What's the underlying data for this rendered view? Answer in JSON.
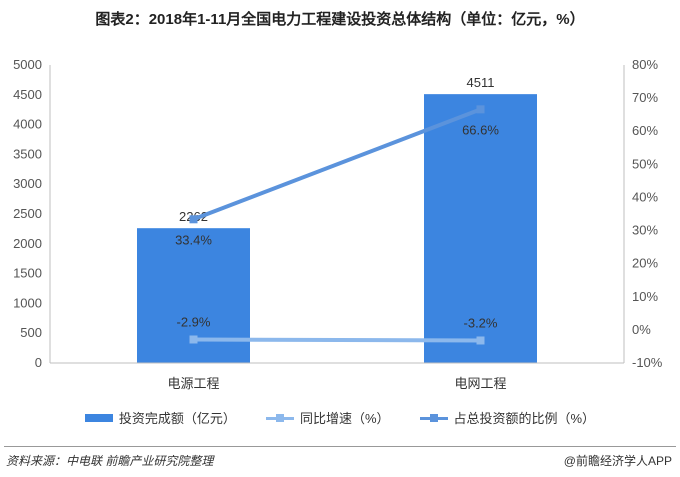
{
  "chart_data": {
    "type": "bar",
    "title": "图表2：2018年1-11月全国电力工程建设投资总体结构（单位：亿元，%）",
    "categories": [
      "电源工程",
      "电网工程"
    ],
    "series": [
      {
        "name": "投资完成额（亿元）",
        "kind": "bar",
        "axis": "left",
        "values": [
          2262,
          4511
        ],
        "labels": [
          "2262",
          "4511"
        ]
      },
      {
        "name": "同比增速（%）",
        "kind": "line",
        "axis": "right",
        "values": [
          -2.9,
          -3.2
        ],
        "labels": [
          "-2.9%",
          "-3.2%"
        ]
      },
      {
        "name": "占总投资额的比例（%）",
        "kind": "line",
        "axis": "right",
        "values": [
          33.4,
          66.6
        ],
        "labels": [
          "33.4%",
          "66.6%"
        ]
      }
    ],
    "y_left": {
      "min": 0,
      "max": 5000,
      "step": 500
    },
    "y_right": {
      "min": -10,
      "max": 80,
      "step": 10,
      "suffix": "%"
    },
    "grid": false,
    "legend_position": "bottom",
    "colors": {
      "bar": "#3c85e0",
      "growth_line": "#8cb8ec",
      "share_line": "#5b93dc"
    }
  },
  "footer": {
    "source": "资料来源：中电联  前瞻产业研究院整理",
    "brand": "@前瞻经济学人APP"
  }
}
